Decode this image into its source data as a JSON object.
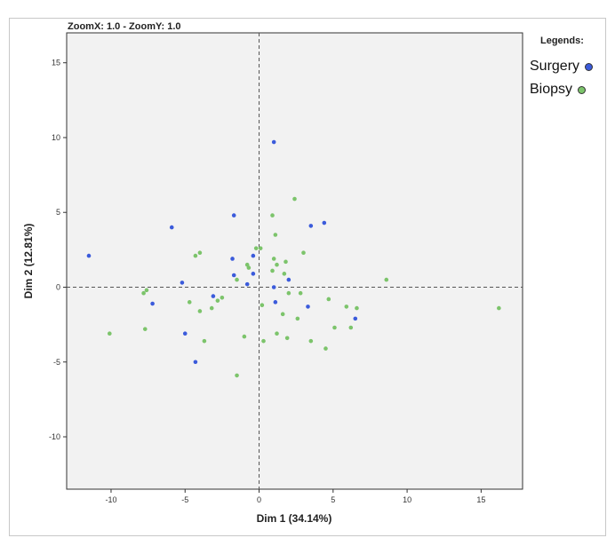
{
  "zoom_label": "ZoomX: 1.0 - ZoomY: 1.0",
  "legend": {
    "title": "Legends:",
    "items": [
      {
        "label": "Surgery",
        "color": "#3b5bdb"
      },
      {
        "label": "Biopsy",
        "color": "#7cc46b"
      }
    ]
  },
  "chart_data": {
    "type": "scatter",
    "title": "",
    "xlabel": "Dim 1 (34.14%)",
    "ylabel": "Dim 2 (12.81%)",
    "xlim": [
      -13,
      17.8
    ],
    "ylim": [
      -13.5,
      17
    ],
    "xticks": [
      -10,
      -5,
      0,
      5,
      10,
      15
    ],
    "yticks": [
      -10,
      -5,
      0,
      5,
      10,
      15
    ],
    "grid": false,
    "reference_lines": {
      "x": 0,
      "y": 0
    },
    "legend_position": "top-right outside",
    "series": [
      {
        "name": "Surgery",
        "color": "#3b5bdb",
        "points": [
          [
            1.0,
            9.7
          ],
          [
            -11.5,
            2.1
          ],
          [
            -5.9,
            4.0
          ],
          [
            -1.7,
            4.8
          ],
          [
            3.5,
            4.1
          ],
          [
            4.4,
            4.3
          ],
          [
            -1.8,
            1.9
          ],
          [
            -0.4,
            2.1
          ],
          [
            -1.7,
            0.8
          ],
          [
            -0.8,
            0.2
          ],
          [
            -0.4,
            0.9
          ],
          [
            1.0,
            0.0
          ],
          [
            2.0,
            0.5
          ],
          [
            -5.2,
            0.3
          ],
          [
            -3.1,
            -0.6
          ],
          [
            -7.2,
            -1.1
          ],
          [
            1.1,
            -1.0
          ],
          [
            3.3,
            -1.3
          ],
          [
            6.5,
            -2.1
          ],
          [
            -5.0,
            -3.1
          ],
          [
            -4.3,
            -5.0
          ]
        ]
      },
      {
        "name": "Biopsy",
        "color": "#7cc46b",
        "points": [
          [
            2.4,
            5.9
          ],
          [
            0.9,
            4.8
          ],
          [
            1.1,
            3.5
          ],
          [
            3.0,
            2.3
          ],
          [
            -0.2,
            2.6
          ],
          [
            0.1,
            2.6
          ],
          [
            -4.0,
            2.3
          ],
          [
            -4.3,
            2.1
          ],
          [
            1.8,
            1.7
          ],
          [
            1.0,
            1.9
          ],
          [
            1.2,
            1.5
          ],
          [
            -0.8,
            1.5
          ],
          [
            -0.7,
            1.3
          ],
          [
            0.9,
            1.1
          ],
          [
            1.7,
            0.9
          ],
          [
            -1.5,
            0.5
          ],
          [
            8.6,
            0.5
          ],
          [
            -7.6,
            -0.2
          ],
          [
            -7.8,
            -0.4
          ],
          [
            2.0,
            -0.4
          ],
          [
            2.8,
            -0.4
          ],
          [
            -2.5,
            -0.7
          ],
          [
            -2.8,
            -0.9
          ],
          [
            4.7,
            -0.8
          ],
          [
            -4.7,
            -1.0
          ],
          [
            0.2,
            -1.2
          ],
          [
            -4.0,
            -1.6
          ],
          [
            -3.2,
            -1.4
          ],
          [
            5.9,
            -1.3
          ],
          [
            6.6,
            -1.4
          ],
          [
            16.2,
            -1.4
          ],
          [
            1.6,
            -1.8
          ],
          [
            2.6,
            -2.1
          ],
          [
            5.1,
            -2.7
          ],
          [
            6.2,
            -2.7
          ],
          [
            -7.7,
            -2.8
          ],
          [
            -10.1,
            -3.1
          ],
          [
            1.2,
            -3.1
          ],
          [
            -1.0,
            -3.3
          ],
          [
            1.9,
            -3.4
          ],
          [
            0.3,
            -3.6
          ],
          [
            -3.7,
            -3.6
          ],
          [
            3.5,
            -3.6
          ],
          [
            4.5,
            -4.1
          ],
          [
            -1.5,
            -5.9
          ]
        ]
      }
    ]
  }
}
